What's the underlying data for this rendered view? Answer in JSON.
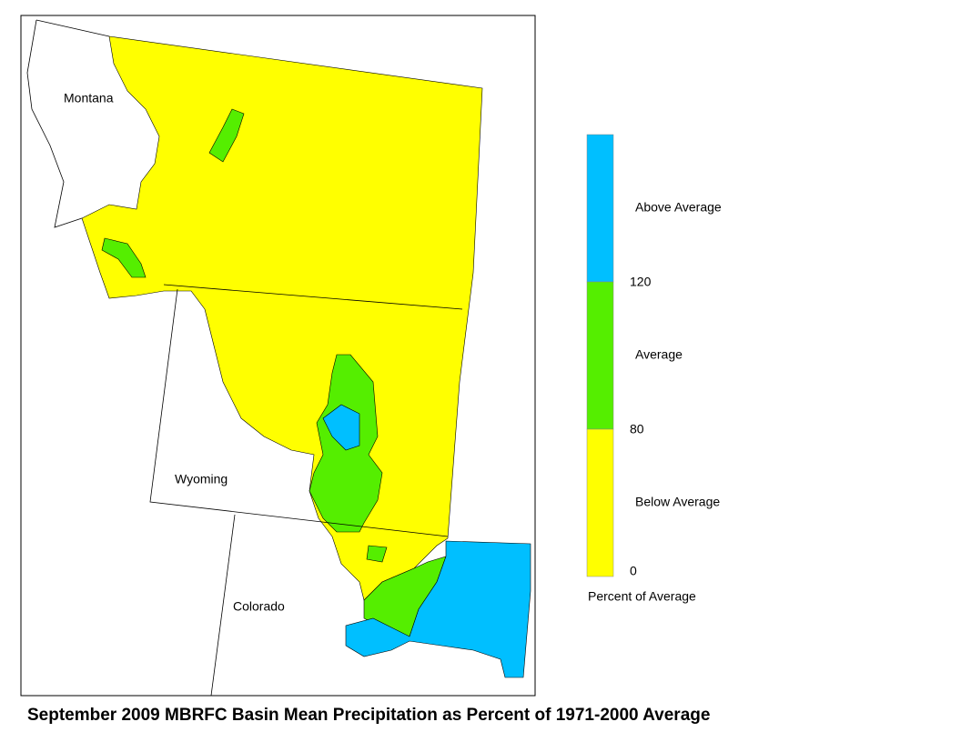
{
  "title": "September 2009 MBRFC Basin Mean Precipitation as Percent of 1971-2000 Average",
  "states": [
    "Montana",
    "Wyoming",
    "Colorado"
  ],
  "legend": {
    "title": "Percent of Average",
    "classes": [
      {
        "label": "Above Average",
        "color": "#00bfff"
      },
      {
        "label": "Average",
        "color": "#55ee00"
      },
      {
        "label": "Below Average",
        "color": "#ffff00"
      }
    ],
    "ticks": [
      120,
      80,
      0
    ]
  }
}
